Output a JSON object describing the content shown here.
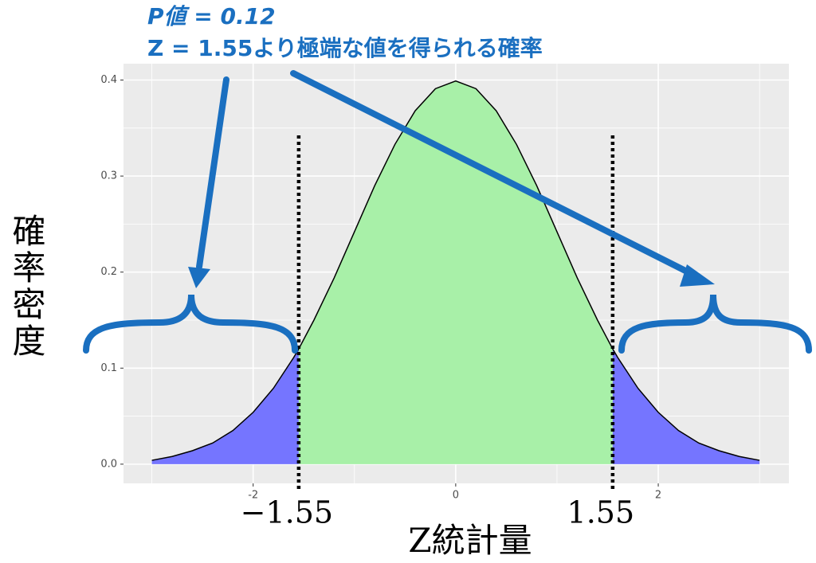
{
  "chart_data": {
    "type": "density",
    "annotation_lines": [
      "P値 = 0.12",
      "Z = 1.55より極端な値を得られる確率"
    ],
    "x_label": "Z統計量",
    "y_label": "確率密度",
    "x": [
      -3,
      -2.8,
      -2.6,
      -2.4,
      -2.2,
      -2,
      -1.8,
      -1.6,
      -1.55,
      -1.4,
      -1.2,
      -1,
      -0.8,
      -0.6,
      -0.4,
      -0.2,
      0,
      0.2,
      0.4,
      0.6,
      0.8,
      1,
      1.2,
      1.4,
      1.55,
      1.6,
      1.8,
      2,
      2.2,
      2.4,
      2.6,
      2.8,
      3
    ],
    "values": [
      0.004,
      0.008,
      0.014,
      0.022,
      0.035,
      0.054,
      0.079,
      0.111,
      0.12,
      0.15,
      0.194,
      0.242,
      0.29,
      0.333,
      0.368,
      0.391,
      0.399,
      0.391,
      0.368,
      0.333,
      0.29,
      0.242,
      0.194,
      0.15,
      0.12,
      0.111,
      0.079,
      0.054,
      0.035,
      0.022,
      0.014,
      0.008,
      0.004
    ],
    "critical_values": [
      {
        "value": -1.55,
        "label": "−1.55"
      },
      {
        "value": 1.55,
        "label": "1.55"
      }
    ],
    "center_color": "#a8f0a8",
    "tail_color": "#7575ff",
    "line_color": "#000000",
    "xlim": [
      -3.28,
      3.29
    ],
    "ylim": [
      -0.02,
      0.417
    ],
    "xticks": [
      -2,
      0,
      2
    ],
    "yticks": [
      {
        "value": 0,
        "label": "0.0"
      },
      {
        "value": 0.1,
        "label": "0.1"
      },
      {
        "value": 0.2,
        "label": "0.2"
      },
      {
        "value": 0.3,
        "label": "0.3"
      },
      {
        "value": 0.4,
        "label": "0.4"
      }
    ],
    "x_minor_grid": [
      -3,
      -1,
      1,
      3
    ],
    "y_minor_grid": [
      0.05,
      0.15,
      0.25,
      0.35
    ],
    "grid": true
  }
}
